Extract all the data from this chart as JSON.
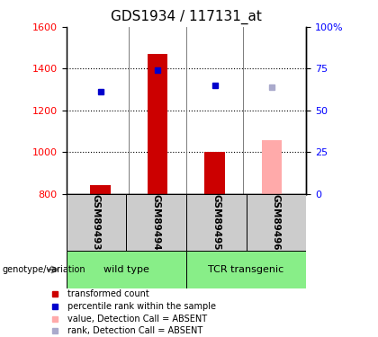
{
  "title": "GDS1934 / 117131_at",
  "samples": [
    "GSM89493",
    "GSM89494",
    "GSM89495",
    "GSM89496"
  ],
  "bar_values": [
    840,
    1470,
    1000,
    1055
  ],
  "bar_colors": [
    "#cc0000",
    "#cc0000",
    "#cc0000",
    "#ffaaaa"
  ],
  "dot_values": [
    1290,
    1395,
    1320,
    1310
  ],
  "dot_colors": [
    "#0000cc",
    "#0000cc",
    "#0000cc",
    "#aaaacc"
  ],
  "bar_bottom": 800,
  "ylim": [
    800,
    1600
  ],
  "yticks_left": [
    800,
    1000,
    1200,
    1400,
    1600
  ],
  "yticks_right": [
    0,
    25,
    50,
    75,
    100
  ],
  "group_label": "genotype/variation",
  "group_defs": [
    {
      "label": "wild type",
      "start": 0,
      "end": 2,
      "color": "#88ee88"
    },
    {
      "label": "TCR transgenic",
      "start": 2,
      "end": 4,
      "color": "#88ee88"
    }
  ],
  "legend_items": [
    {
      "label": "transformed count",
      "color": "#cc0000"
    },
    {
      "label": "percentile rank within the sample",
      "color": "#0000cc"
    },
    {
      "label": "value, Detection Call = ABSENT",
      "color": "#ffaaaa"
    },
    {
      "label": "rank, Detection Call = ABSENT",
      "color": "#aaaacc"
    }
  ],
  "sample_box_color": "#cccccc",
  "bar_width": 0.35,
  "title_fontsize": 11
}
